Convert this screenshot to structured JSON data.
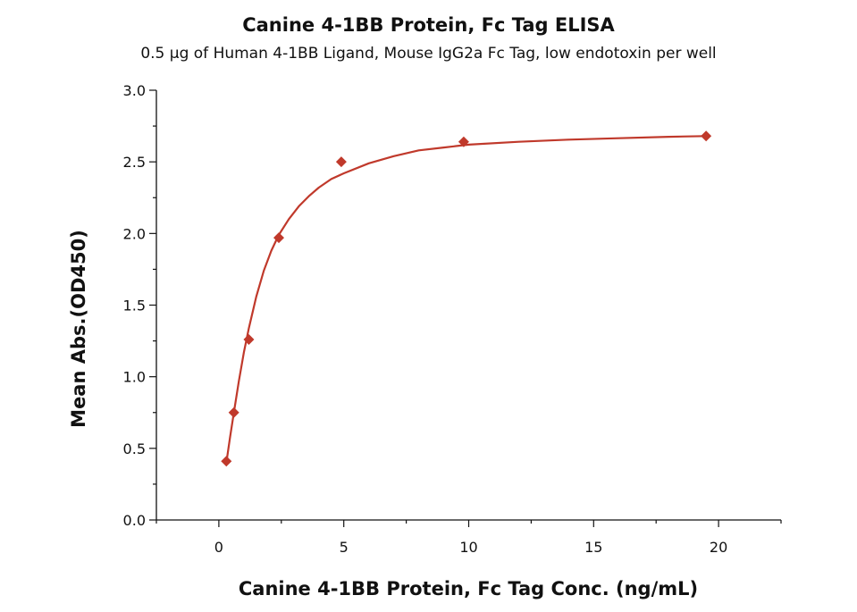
{
  "chart_data": {
    "type": "scatter",
    "title": "Canine 4-1BB Protein, Fc Tag ELISA",
    "subtitle": "0.5 µg of Human 4-1BB Ligand, Mouse IgG2a Fc Tag, low endotoxin per well",
    "xlabel": "Canine 4-1BB Protein, Fc Tag Conc. (ng/mL)",
    "ylabel": "Mean Abs.(OD450)",
    "xlim": [
      -2.5,
      22.5
    ],
    "ylim": [
      0,
      3.0
    ],
    "x_ticks": [
      "0",
      "5",
      "10",
      "15",
      "20"
    ],
    "y_ticks": [
      "0.0",
      "0.5",
      "1.0",
      "1.5",
      "2.0",
      "2.5",
      "3.0"
    ],
    "grid": false,
    "legend": "none",
    "colors": {
      "series": "#c0392b",
      "axis": "#111111"
    },
    "series": [
      {
        "x": [
          0.3,
          0.6,
          1.2,
          2.4,
          4.9,
          9.8,
          19.5
        ],
        "y": [
          0.41,
          0.75,
          1.26,
          1.97,
          2.5,
          2.64,
          2.68
        ]
      }
    ],
    "fit": {
      "type": "sigmoidal",
      "x": [
        0.3,
        0.45,
        0.6,
        0.8,
        1.0,
        1.2,
        1.5,
        1.8,
        2.1,
        2.4,
        2.8,
        3.2,
        3.6,
        4.0,
        4.5,
        5.0,
        6.0,
        7.0,
        8.0,
        9.0,
        10.0,
        12.0,
        14.0,
        16.0,
        18.0,
        19.5
      ],
      "y": [
        0.4,
        0.58,
        0.75,
        0.97,
        1.17,
        1.34,
        1.56,
        1.74,
        1.88,
        1.99,
        2.1,
        2.19,
        2.26,
        2.32,
        2.38,
        2.42,
        2.49,
        2.54,
        2.58,
        2.6,
        2.62,
        2.64,
        2.655,
        2.665,
        2.675,
        2.68
      ]
    }
  }
}
